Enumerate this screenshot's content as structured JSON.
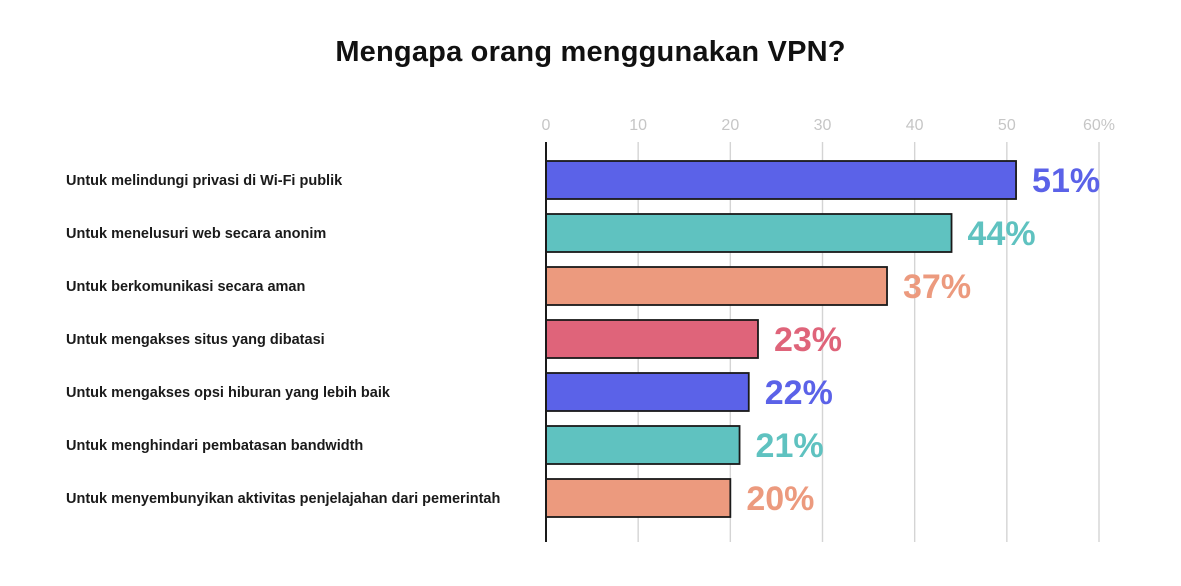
{
  "chart_data": {
    "type": "bar",
    "orientation": "horizontal",
    "title": "Mengapa orang menggunakan VPN?",
    "categories": [
      "Untuk melindungi privasi di Wi-Fi publik",
      "Untuk menelusuri web secara anonim",
      "Untuk berkomunikasi secara aman",
      "Untuk mengakses situs yang dibatasi",
      "Untuk mengakses opsi hiburan yang lebih baik",
      "Untuk menghindari pembatasan bandwidth",
      "Untuk menyembunyikan aktivitas penjelajahan dari pemerintah"
    ],
    "values": [
      51,
      44,
      37,
      23,
      22,
      21,
      20
    ],
    "value_labels": [
      "51%",
      "44%",
      "37%",
      "23%",
      "22%",
      "21%",
      "20%"
    ],
    "bar_colors": [
      "#5b62e8",
      "#5fc2c0",
      "#ec9a7e",
      "#df647a",
      "#5b62e8",
      "#5fc2c0",
      "#ec9a7e"
    ],
    "xlim": [
      0,
      60
    ],
    "x_ticks": [
      0,
      10,
      20,
      30,
      40,
      50,
      60
    ],
    "x_tick_labels": [
      "0",
      "10",
      "20",
      "30",
      "40",
      "50",
      "60%"
    ],
    "x_axis_position": "top",
    "grid": true,
    "xlabel": "",
    "ylabel": ""
  }
}
